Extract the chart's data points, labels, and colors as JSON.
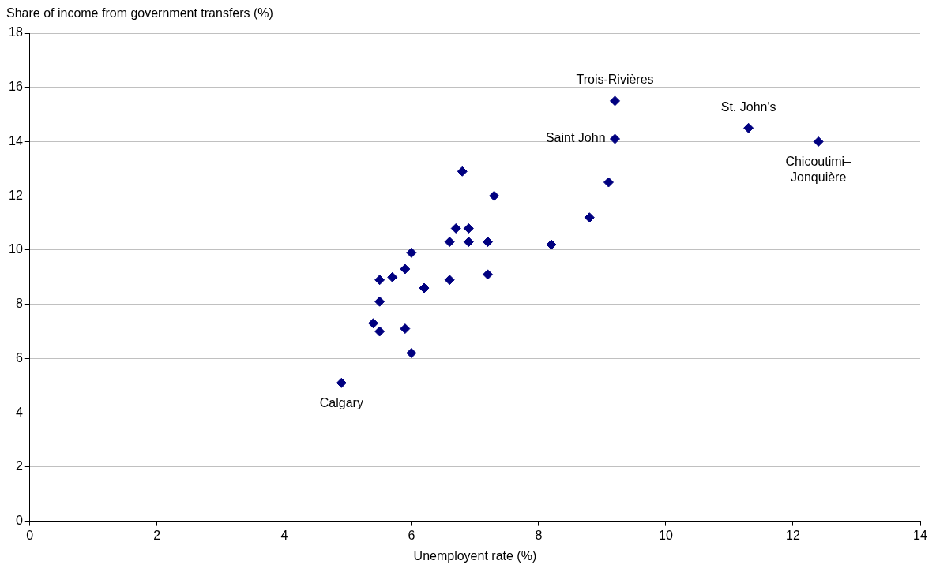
{
  "chart_data": {
    "type": "scatter",
    "xlabel": "Unemployent rate (%)",
    "ylabel": "Share of income from government transfers (%)",
    "x": [
      4.9,
      5.4,
      5.5,
      5.5,
      5.5,
      5.7,
      5.9,
      5.9,
      6.0,
      6.0,
      6.2,
      6.6,
      6.6,
      6.7,
      6.8,
      6.9,
      6.9,
      7.2,
      7.2,
      7.3,
      8.2,
      8.8,
      9.1,
      9.2,
      9.2,
      11.3,
      12.4
    ],
    "values": [
      5.1,
      7.3,
      7.0,
      8.1,
      8.9,
      9.0,
      9.3,
      7.1,
      9.9,
      6.2,
      8.6,
      10.3,
      8.9,
      10.8,
      12.9,
      10.8,
      10.3,
      10.3,
      9.1,
      12.0,
      10.2,
      11.2,
      12.5,
      14.1,
      15.5,
      14.5,
      14.0
    ],
    "color": "#000080",
    "marker": "diamond",
    "xlim": [
      0,
      14
    ],
    "xticks": [
      0,
      2,
      4,
      6,
      8,
      10,
      12,
      14
    ],
    "ylim": [
      0,
      18
    ],
    "yticks": [
      0,
      2,
      4,
      6,
      8,
      10,
      12,
      14,
      16,
      18
    ],
    "grid": "y",
    "legend": false,
    "annotations": [
      {
        "text": "Calgary",
        "x": 4.9,
        "y": 5.1
      },
      {
        "text": "Saint John",
        "x": 9.2,
        "y": 14.1
      },
      {
        "text": "Trois-Rivières",
        "x": 9.2,
        "y": 15.5
      },
      {
        "text": "St. John's",
        "x": 11.3,
        "y": 14.5
      },
      {
        "text": "Chicoutimi–Jonquière",
        "x": 12.4,
        "y": 14.0
      }
    ]
  }
}
